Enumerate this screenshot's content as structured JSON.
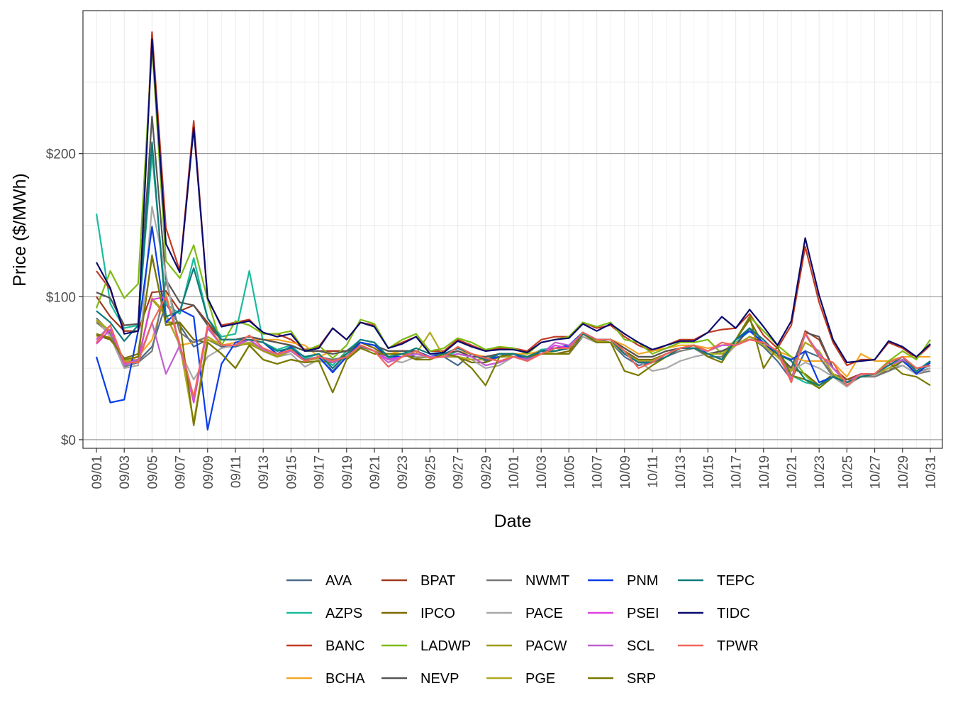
{
  "chart_data": {
    "type": "line",
    "xlabel": "Date",
    "ylabel": "Price ($/MWh)",
    "ylim": [
      -6,
      300
    ],
    "y_ticks": [
      0,
      100,
      200
    ],
    "y_tick_labels": [
      "$0",
      "$100",
      "$200"
    ],
    "x_tick_labels": [
      "09/01",
      "09/03",
      "09/05",
      "09/07",
      "09/09",
      "09/11",
      "09/13",
      "09/15",
      "09/17",
      "09/19",
      "09/21",
      "09/23",
      "09/25",
      "09/27",
      "09/29",
      "10/01",
      "10/03",
      "10/05",
      "10/07",
      "10/09",
      "10/11",
      "10/13",
      "10/15",
      "10/17",
      "10/19",
      "10/21",
      "10/23",
      "10/25",
      "10/27",
      "10/29",
      "10/31"
    ],
    "x": [
      "09/01",
      "09/02",
      "09/03",
      "09/04",
      "09/05",
      "09/06",
      "09/07",
      "09/08",
      "09/09",
      "09/10",
      "09/11",
      "09/12",
      "09/13",
      "09/14",
      "09/15",
      "09/16",
      "09/17",
      "09/18",
      "09/19",
      "09/20",
      "09/21",
      "09/22",
      "09/23",
      "09/24",
      "09/25",
      "09/26",
      "09/27",
      "09/28",
      "09/29",
      "09/30",
      "10/01",
      "10/02",
      "10/03",
      "10/04",
      "10/05",
      "10/06",
      "10/07",
      "10/08",
      "10/09",
      "10/10",
      "10/11",
      "10/12",
      "10/13",
      "10/14",
      "10/15",
      "10/16",
      "10/17",
      "10/18",
      "10/19",
      "10/20",
      "10/21",
      "10/22",
      "10/23",
      "10/24",
      "10/25",
      "10/26",
      "10/27",
      "10/28",
      "10/29",
      "10/30",
      "10/31"
    ],
    "grid": true,
    "legend_position": "bottom",
    "series": [
      {
        "name": "AVA",
        "color": "#4a6a8a",
        "values": [
          85,
          75,
          55,
          55,
          65,
          95,
          80,
          65,
          70,
          65,
          65,
          68,
          62,
          58,
          62,
          55,
          58,
          48,
          58,
          65,
          62,
          58,
          60,
          58,
          58,
          58,
          52,
          60,
          55,
          60,
          58,
          55,
          60,
          62,
          65,
          75,
          70,
          68,
          58,
          52,
          54,
          58,
          64,
          66,
          60,
          62,
          66,
          72,
          65,
          55,
          42,
          62,
          58,
          45,
          40,
          45,
          45,
          48,
          55,
          47,
          50
        ]
      },
      {
        "name": "AZPS",
        "color": "#1abc9c",
        "values": [
          158,
          95,
          78,
          80,
          200,
          95,
          88,
          127,
          85,
          72,
          74,
          118,
          68,
          63,
          66,
          57,
          60,
          52,
          62,
          70,
          68,
          57,
          60,
          62,
          58,
          58,
          62,
          60,
          56,
          58,
          60,
          58,
          63,
          64,
          66,
          75,
          70,
          70,
          62,
          55,
          55,
          60,
          64,
          64,
          60,
          56,
          68,
          76,
          68,
          60,
          45,
          40,
          38,
          44,
          42,
          44,
          46,
          52,
          56,
          48,
          52
        ]
      },
      {
        "name": "BANC",
        "color": "#c23b22",
        "values": [
          118,
          105,
          76,
          76,
          285,
          148,
          118,
          223,
          98,
          80,
          82,
          84,
          74,
          74,
          70,
          63,
          65,
          78,
          70,
          82,
          80,
          64,
          68,
          72,
          62,
          62,
          70,
          66,
          62,
          64,
          64,
          62,
          70,
          72,
          72,
          82,
          78,
          80,
          72,
          66,
          62,
          66,
          70,
          70,
          75,
          77,
          78,
          88,
          73,
          64,
          80,
          135,
          96,
          68,
          52,
          56,
          56,
          68,
          64,
          57,
          66
        ]
      },
      {
        "name": "BCHA",
        "color": "#f5a623",
        "values": [
          72,
          72,
          54,
          58,
          70,
          102,
          66,
          68,
          72,
          66,
          68,
          70,
          70,
          70,
          68,
          66,
          58,
          62,
          62,
          66,
          62,
          60,
          62,
          62,
          58,
          60,
          62,
          60,
          58,
          60,
          60,
          60,
          62,
          62,
          64,
          74,
          70,
          70,
          66,
          60,
          62,
          64,
          66,
          66,
          64,
          66,
          68,
          70,
          68,
          62,
          58,
          55,
          55,
          54,
          44,
          60,
          55,
          55,
          58,
          58,
          58
        ]
      },
      {
        "name": "BPAT",
        "color": "#a0391f",
        "values": [
          100,
          86,
          76,
          76,
          103,
          104,
          90,
          94,
          82,
          70,
          70,
          72,
          70,
          68,
          66,
          62,
          62,
          62,
          62,
          68,
          66,
          62,
          62,
          62,
          58,
          60,
          62,
          58,
          58,
          60,
          60,
          58,
          62,
          62,
          64,
          74,
          70,
          70,
          64,
          58,
          58,
          62,
          64,
          64,
          60,
          62,
          66,
          72,
          68,
          60,
          42,
          76,
          70,
          50,
          42,
          46,
          46,
          52,
          56,
          48,
          54
        ]
      },
      {
        "name": "IPCO",
        "color": "#7a6a00",
        "values": [
          73,
          70,
          57,
          60,
          128,
          82,
          82,
          70,
          68,
          60,
          50,
          66,
          56,
          53,
          56,
          54,
          55,
          54,
          60,
          68,
          64,
          58,
          60,
          57,
          58,
          58,
          58,
          54,
          54,
          58,
          60,
          58,
          60,
          60,
          62,
          74,
          70,
          70,
          62,
          56,
          56,
          60,
          64,
          66,
          58,
          58,
          70,
          84,
          66,
          58,
          50,
          46,
          38,
          46,
          42,
          44,
          46,
          48,
          56,
          46,
          50
        ]
      },
      {
        "name": "LADWP",
        "color": "#7dbb12",
        "values": [
          92,
          118,
          99,
          109,
          275,
          125,
          113,
          136,
          98,
          66,
          83,
          80,
          74,
          74,
          76,
          62,
          66,
          57,
          66,
          84,
          81,
          64,
          70,
          74,
          62,
          64,
          71,
          68,
          63,
          65,
          64,
          60,
          68,
          70,
          72,
          82,
          79,
          82,
          70,
          68,
          60,
          64,
          68,
          68,
          70,
          60,
          70,
          86,
          76,
          66,
          58,
          45,
          36,
          44,
          40,
          44,
          46,
          55,
          62,
          56,
          70
        ]
      },
      {
        "name": "NEVP",
        "color": "#555555",
        "values": [
          103,
          99,
          80,
          81,
          226,
          112,
          96,
          94,
          80,
          70,
          70,
          72,
          70,
          68,
          66,
          62,
          62,
          60,
          62,
          68,
          66,
          62,
          62,
          62,
          58,
          60,
          62,
          58,
          58,
          60,
          60,
          58,
          62,
          62,
          64,
          74,
          70,
          70,
          64,
          58,
          58,
          62,
          64,
          64,
          60,
          62,
          66,
          78,
          66,
          60,
          50,
          75,
          72,
          50,
          40,
          46,
          46,
          52,
          56,
          48,
          54
        ]
      },
      {
        "name": "NWMT",
        "color": "#777777",
        "values": [
          82,
          74,
          51,
          54,
          62,
          111,
          75,
          68,
          72,
          66,
          66,
          68,
          64,
          60,
          62,
          56,
          58,
          56,
          58,
          66,
          62,
          58,
          60,
          60,
          58,
          58,
          58,
          56,
          56,
          58,
          58,
          57,
          60,
          60,
          60,
          72,
          68,
          68,
          60,
          54,
          54,
          58,
          62,
          64,
          58,
          58,
          66,
          72,
          66,
          58,
          48,
          74,
          58,
          44,
          38,
          44,
          44,
          48,
          52,
          46,
          48
        ]
      },
      {
        "name": "PACE",
        "color": "#a8a8a8",
        "values": [
          84,
          72,
          50,
          52,
          163,
          116,
          62,
          42,
          58,
          64,
          66,
          68,
          62,
          58,
          60,
          51,
          56,
          50,
          58,
          66,
          62,
          56,
          54,
          58,
          58,
          58,
          58,
          56,
          50,
          52,
          58,
          58,
          62,
          64,
          64,
          72,
          68,
          68,
          60,
          55,
          48,
          50,
          55,
          58,
          60,
          56,
          66,
          72,
          66,
          58,
          48,
          54,
          50,
          44,
          37,
          45,
          45,
          50,
          52,
          46,
          50
        ]
      },
      {
        "name": "PACW",
        "color": "#9e9a10",
        "values": [
          83,
          76,
          55,
          55,
          98,
          87,
          66,
          12,
          70,
          66,
          66,
          67,
          62,
          58,
          62,
          55,
          57,
          54,
          57,
          66,
          62,
          56,
          58,
          60,
          58,
          58,
          58,
          56,
          56,
          58,
          58,
          58,
          60,
          62,
          64,
          74,
          69,
          68,
          60,
          55,
          55,
          60,
          64,
          66,
          60,
          60,
          66,
          72,
          66,
          58,
          48,
          68,
          62,
          46,
          40,
          46,
          46,
          50,
          56,
          48,
          54
        ]
      },
      {
        "name": "PGE",
        "color": "#b0a820",
        "values": [
          84,
          76,
          55,
          56,
          99,
          88,
          66,
          12,
          72,
          66,
          66,
          68,
          63,
          59,
          62,
          55,
          57,
          54,
          57,
          66,
          62,
          56,
          58,
          60,
          75,
          58,
          58,
          56,
          56,
          58,
          58,
          58,
          60,
          62,
          64,
          74,
          69,
          68,
          60,
          55,
          55,
          60,
          64,
          66,
          60,
          60,
          66,
          72,
          66,
          58,
          48,
          68,
          62,
          46,
          40,
          46,
          46,
          50,
          56,
          48,
          54
        ]
      },
      {
        "name": "PNM",
        "color": "#0a3de8",
        "values": [
          58,
          26,
          28,
          76,
          149,
          82,
          91,
          86,
          7,
          53,
          68,
          70,
          68,
          60,
          65,
          55,
          58,
          47,
          58,
          68,
          66,
          58,
          58,
          62,
          58,
          60,
          64,
          60,
          56,
          58,
          60,
          56,
          62,
          64,
          66,
          75,
          70,
          70,
          60,
          54,
          54,
          60,
          64,
          66,
          60,
          56,
          70,
          76,
          68,
          60,
          56,
          62,
          40,
          44,
          40,
          46,
          46,
          52,
          56,
          46,
          54
        ]
      },
      {
        "name": "PSEI",
        "color": "#e040e0",
        "values": [
          67,
          77,
          53,
          56,
          98,
          100,
          66,
          26,
          78,
          66,
          66,
          70,
          63,
          60,
          62,
          55,
          58,
          54,
          58,
          66,
          62,
          56,
          58,
          60,
          58,
          58,
          60,
          58,
          52,
          54,
          58,
          56,
          60,
          66,
          64,
          74,
          70,
          70,
          60,
          54,
          54,
          60,
          64,
          64,
          62,
          66,
          66,
          70,
          68,
          62,
          42,
          74,
          60,
          50,
          40,
          46,
          46,
          52,
          56,
          50,
          52
        ]
      },
      {
        "name": "SCL",
        "color": "#c060d0",
        "values": [
          70,
          80,
          52,
          56,
          82,
          46,
          66,
          28,
          78,
          66,
          66,
          70,
          63,
          60,
          62,
          55,
          58,
          54,
          58,
          66,
          62,
          54,
          58,
          60,
          58,
          58,
          60,
          58,
          52,
          54,
          58,
          56,
          60,
          68,
          66,
          74,
          70,
          70,
          60,
          54,
          54,
          60,
          64,
          64,
          62,
          66,
          66,
          70,
          68,
          62,
          42,
          74,
          60,
          50,
          40,
          46,
          46,
          52,
          56,
          50,
          52
        ]
      },
      {
        "name": "SRP",
        "color": "#7a7a00",
        "values": [
          74,
          71,
          56,
          58,
          129,
          80,
          82,
          10,
          68,
          60,
          50,
          66,
          56,
          53,
          56,
          54,
          55,
          33,
          56,
          64,
          60,
          60,
          60,
          56,
          56,
          60,
          58,
          50,
          38,
          58,
          60,
          58,
          60,
          60,
          60,
          74,
          68,
          68,
          48,
          45,
          52,
          58,
          64,
          66,
          58,
          54,
          70,
          86,
          50,
          65,
          45,
          42,
          36,
          44,
          40,
          44,
          46,
          54,
          46,
          44,
          38
        ]
      },
      {
        "name": "TEPC",
        "color": "#117a7a",
        "values": [
          90,
          82,
          69,
          80,
          208,
          86,
          90,
          120,
          85,
          70,
          70,
          70,
          68,
          62,
          64,
          58,
          60,
          50,
          60,
          70,
          68,
          58,
          60,
          64,
          60,
          60,
          64,
          60,
          56,
          60,
          60,
          58,
          62,
          62,
          64,
          74,
          70,
          70,
          60,
          54,
          54,
          58,
          64,
          64,
          60,
          56,
          70,
          78,
          70,
          60,
          55,
          42,
          38,
          44,
          40,
          44,
          46,
          52,
          58,
          48,
          55
        ]
      },
      {
        "name": "TIDC",
        "color": "#0a0a6e",
        "values": [
          124,
          106,
          74,
          76,
          280,
          137,
          117,
          218,
          99,
          79,
          81,
          83,
          75,
          72,
          74,
          62,
          64,
          78,
          70,
          82,
          79,
          64,
          67,
          72,
          60,
          61,
          69,
          65,
          62,
          63,
          63,
          61,
          68,
          70,
          71,
          81,
          76,
          81,
          74,
          68,
          63,
          66,
          69,
          69,
          75,
          86,
          78,
          91,
          79,
          66,
          83,
          141,
          101,
          70,
          54,
          55,
          56,
          69,
          65,
          58,
          67
        ]
      },
      {
        "name": "TPWR",
        "color": "#f0655a",
        "values": [
          68,
          80,
          54,
          54,
          82,
          100,
          67,
          30,
          80,
          66,
          66,
          73,
          64,
          60,
          63,
          55,
          58,
          55,
          58,
          66,
          62,
          51,
          58,
          62,
          57,
          58,
          65,
          60,
          57,
          55,
          58,
          55,
          60,
          64,
          64,
          75,
          70,
          70,
          62,
          50,
          54,
          60,
          64,
          66,
          62,
          68,
          66,
          70,
          68,
          62,
          40,
          75,
          58,
          54,
          38,
          46,
          46,
          54,
          58,
          50,
          52
        ]
      }
    ]
  }
}
